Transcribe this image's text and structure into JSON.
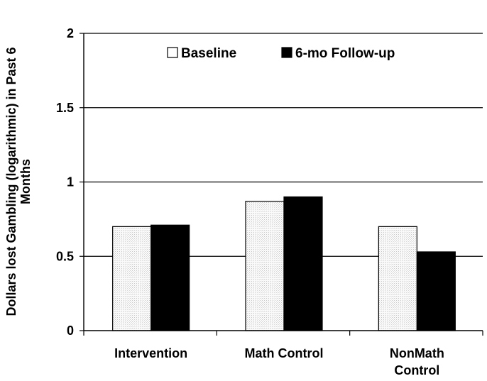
{
  "chart_data": {
    "type": "bar",
    "categories": [
      [
        "Intervention"
      ],
      [
        "Math Control"
      ],
      [
        "NonMath",
        "Control"
      ]
    ],
    "series": [
      {
        "name": "Baseline",
        "values": [
          0.7,
          0.87,
          0.7
        ],
        "color": "#f2f2f2"
      },
      {
        "name": "6-mo Follow-up",
        "values": [
          0.71,
          0.9,
          0.53
        ],
        "color": "#000000"
      }
    ],
    "ylabel_lines": [
      "Dollars lost Gambling (logarithmic) in Past 6",
      "Months"
    ],
    "ylim": [
      0,
      2
    ],
    "yticks": [
      "0",
      "0.5",
      "1",
      "1.5",
      "2"
    ],
    "ytick_values": [
      0,
      0.5,
      1,
      1.5,
      2
    ],
    "grid": true,
    "legend_position": "top"
  }
}
